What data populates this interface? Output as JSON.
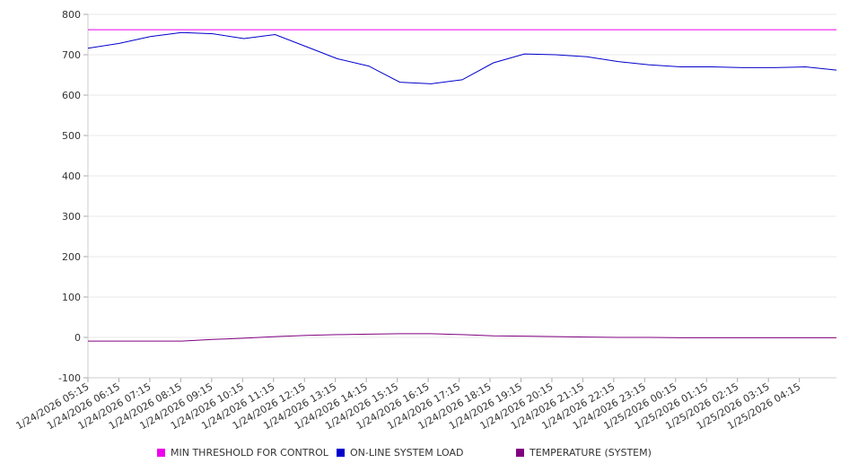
{
  "chart_data": {
    "type": "line",
    "ylim": [
      -100,
      800
    ],
    "y_ticks": [
      "800",
      "700",
      "600",
      "500",
      "400",
      "300",
      "200",
      "100",
      "0",
      "-100"
    ],
    "x_ticks": [
      "1/24/2026 05:15",
      "1/24/2026 06:15",
      "1/24/2026 07:15",
      "1/24/2026 08:15",
      "1/24/2026 09:15",
      "1/24/2026 10:15",
      "1/24/2026 11:15",
      "1/24/2026 12:15",
      "1/24/2026 13:15",
      "1/24/2026 14:15",
      "1/24/2026 15:15",
      "1/24/2026 16:15",
      "1/24/2026 17:15",
      "1/24/2026 18:15",
      "1/24/2026 19:15",
      "1/24/2026 20:15",
      "1/24/2026 21:15",
      "1/24/2026 22:15",
      "1/24/2026 23:15",
      "1/25/2026 00:15",
      "1/25/2026 01:15",
      "1/25/2026 02:15",
      "1/25/2026 03:15",
      "1/25/2026 04:15"
    ],
    "grid": "horizontal",
    "legend_position": "bottom",
    "series": [
      {
        "name": "MIN THRESHOLD FOR CONTROL",
        "color": "#ee00ee",
        "values": [
          762,
          762,
          762,
          762,
          762,
          762,
          762,
          762,
          762,
          762,
          762,
          762,
          762,
          762,
          762,
          762,
          762,
          762,
          762,
          762,
          762,
          762,
          762,
          762,
          762
        ]
      },
      {
        "name": "ON-LINE SYSTEM LOAD",
        "color": "#0000cc",
        "values": [
          716,
          728,
          745,
          755,
          752,
          740,
          750,
          720,
          690,
          672,
          632,
          628,
          638,
          680,
          702,
          700,
          695,
          683,
          675,
          670,
          670,
          668,
          668,
          670,
          662
        ]
      },
      {
        "name": "TEMPERATURE (SYSTEM)",
        "color": "#800080",
        "values": [
          -9,
          -9,
          -9,
          -9,
          -5,
          -2,
          2,
          5,
          7,
          8,
          9,
          9,
          7,
          4,
          3,
          2,
          1,
          0,
          0,
          -1,
          -1,
          -1,
          -1,
          -1,
          -1
        ]
      }
    ]
  }
}
